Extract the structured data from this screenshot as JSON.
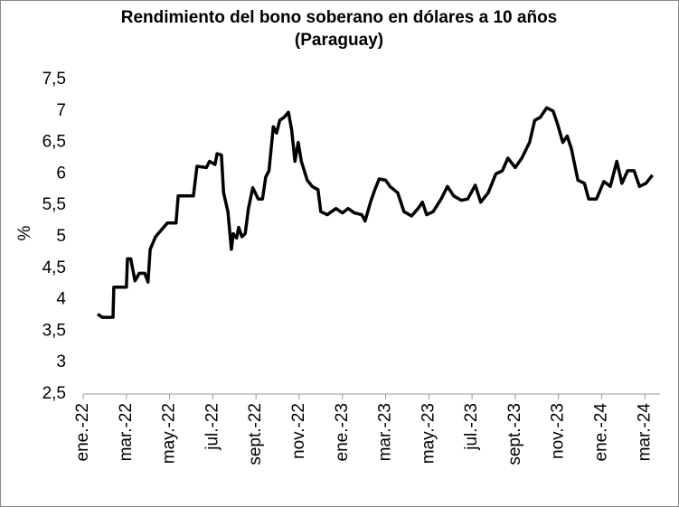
{
  "chart_data": {
    "type": "line",
    "title": "Rendimiento del bono soberano en dólares a 10 años",
    "subtitle": "(Paraguay)",
    "y_label": "%",
    "x": [
      0.67,
      0.88,
      1.38,
      1.42,
      2.0,
      2.05,
      2.2,
      2.4,
      2.6,
      2.85,
      3.0,
      3.1,
      3.35,
      3.6,
      3.9,
      4.3,
      4.4,
      5.1,
      5.27,
      5.7,
      5.85,
      6.1,
      6.2,
      6.4,
      6.5,
      6.7,
      6.86,
      6.95,
      7.1,
      7.2,
      7.35,
      7.5,
      7.65,
      7.85,
      8.1,
      8.3,
      8.45,
      8.6,
      8.8,
      8.95,
      9.1,
      9.3,
      9.5,
      9.65,
      9.8,
      9.95,
      10.1,
      10.37,
      10.6,
      10.87,
      11.0,
      11.3,
      11.7,
      12.0,
      12.26,
      12.55,
      12.9,
      13.05,
      13.3,
      13.5,
      13.7,
      14.0,
      14.2,
      14.56,
      14.85,
      15.2,
      15.5,
      15.7,
      15.9,
      16.2,
      16.57,
      16.86,
      17.15,
      17.5,
      17.8,
      18.15,
      18.4,
      18.75,
      19.1,
      19.4,
      19.66,
      20.0,
      20.3,
      20.66,
      20.9,
      21.16,
      21.45,
      21.75,
      21.95,
      22.2,
      22.4,
      22.6,
      22.9,
      23.2,
      23.4,
      23.76,
      24.1,
      24.4,
      24.7,
      24.94,
      25.2,
      25.5,
      25.75,
      26.05,
      26.35
    ],
    "series": [
      {
        "color": "#000000",
        "values": [
          3.77,
          3.72,
          3.72,
          4.2,
          4.2,
          4.65,
          4.65,
          4.3,
          4.42,
          4.42,
          4.28,
          4.8,
          5.0,
          5.1,
          5.22,
          5.22,
          5.65,
          5.65,
          6.12,
          6.1,
          6.2,
          6.15,
          6.32,
          6.3,
          5.7,
          5.4,
          4.8,
          5.05,
          4.98,
          5.15,
          5.0,
          5.05,
          5.45,
          5.78,
          5.6,
          5.6,
          5.95,
          6.05,
          6.75,
          6.65,
          6.85,
          6.9,
          6.98,
          6.7,
          6.2,
          6.5,
          6.2,
          5.9,
          5.8,
          5.75,
          5.4,
          5.35,
          5.45,
          5.38,
          5.45,
          5.38,
          5.35,
          5.25,
          5.55,
          5.75,
          5.92,
          5.9,
          5.8,
          5.7,
          5.4,
          5.33,
          5.45,
          5.55,
          5.35,
          5.4,
          5.6,
          5.8,
          5.65,
          5.58,
          5.6,
          5.82,
          5.55,
          5.7,
          6.0,
          6.05,
          6.25,
          6.1,
          6.25,
          6.5,
          6.85,
          6.9,
          7.05,
          7.0,
          6.8,
          6.5,
          6.6,
          6.4,
          5.9,
          5.85,
          5.6,
          5.6,
          5.88,
          5.8,
          6.2,
          5.85,
          6.05,
          6.05,
          5.8,
          5.85,
          5.98
        ]
      }
    ],
    "xlim": [
      0,
      26.7
    ],
    "xticks": [
      {
        "value": 0,
        "label": "ene.-22"
      },
      {
        "value": 2,
        "label": "mar.-22"
      },
      {
        "value": 4,
        "label": "may.-22"
      },
      {
        "value": 6,
        "label": "jul.-22"
      },
      {
        "value": 8,
        "label": "sept.-22"
      },
      {
        "value": 10,
        "label": "nov.-22"
      },
      {
        "value": 12,
        "label": "ene.-23"
      },
      {
        "value": 14,
        "label": "mar.-23"
      },
      {
        "value": 16,
        "label": "may.-23"
      },
      {
        "value": 18,
        "label": "jul.-23"
      },
      {
        "value": 20,
        "label": "sept.-23"
      },
      {
        "value": 22,
        "label": "nov.-23"
      },
      {
        "value": 24,
        "label": "ene.-24"
      },
      {
        "value": 26,
        "label": "mar.-24"
      }
    ],
    "ylim": [
      2.5,
      7.5
    ],
    "yticks": [
      {
        "value": 2.5,
        "label": "2,5"
      },
      3,
      {
        "value": 3.5,
        "label": "3,5"
      },
      4,
      {
        "value": 4.5,
        "label": "4,5"
      },
      5,
      {
        "value": 5.5,
        "label": "5,5"
      },
      6,
      {
        "value": 6.5,
        "label": "6,5"
      },
      7,
      {
        "value": 7.5,
        "label": "7,5"
      }
    ],
    "grid": false
  }
}
